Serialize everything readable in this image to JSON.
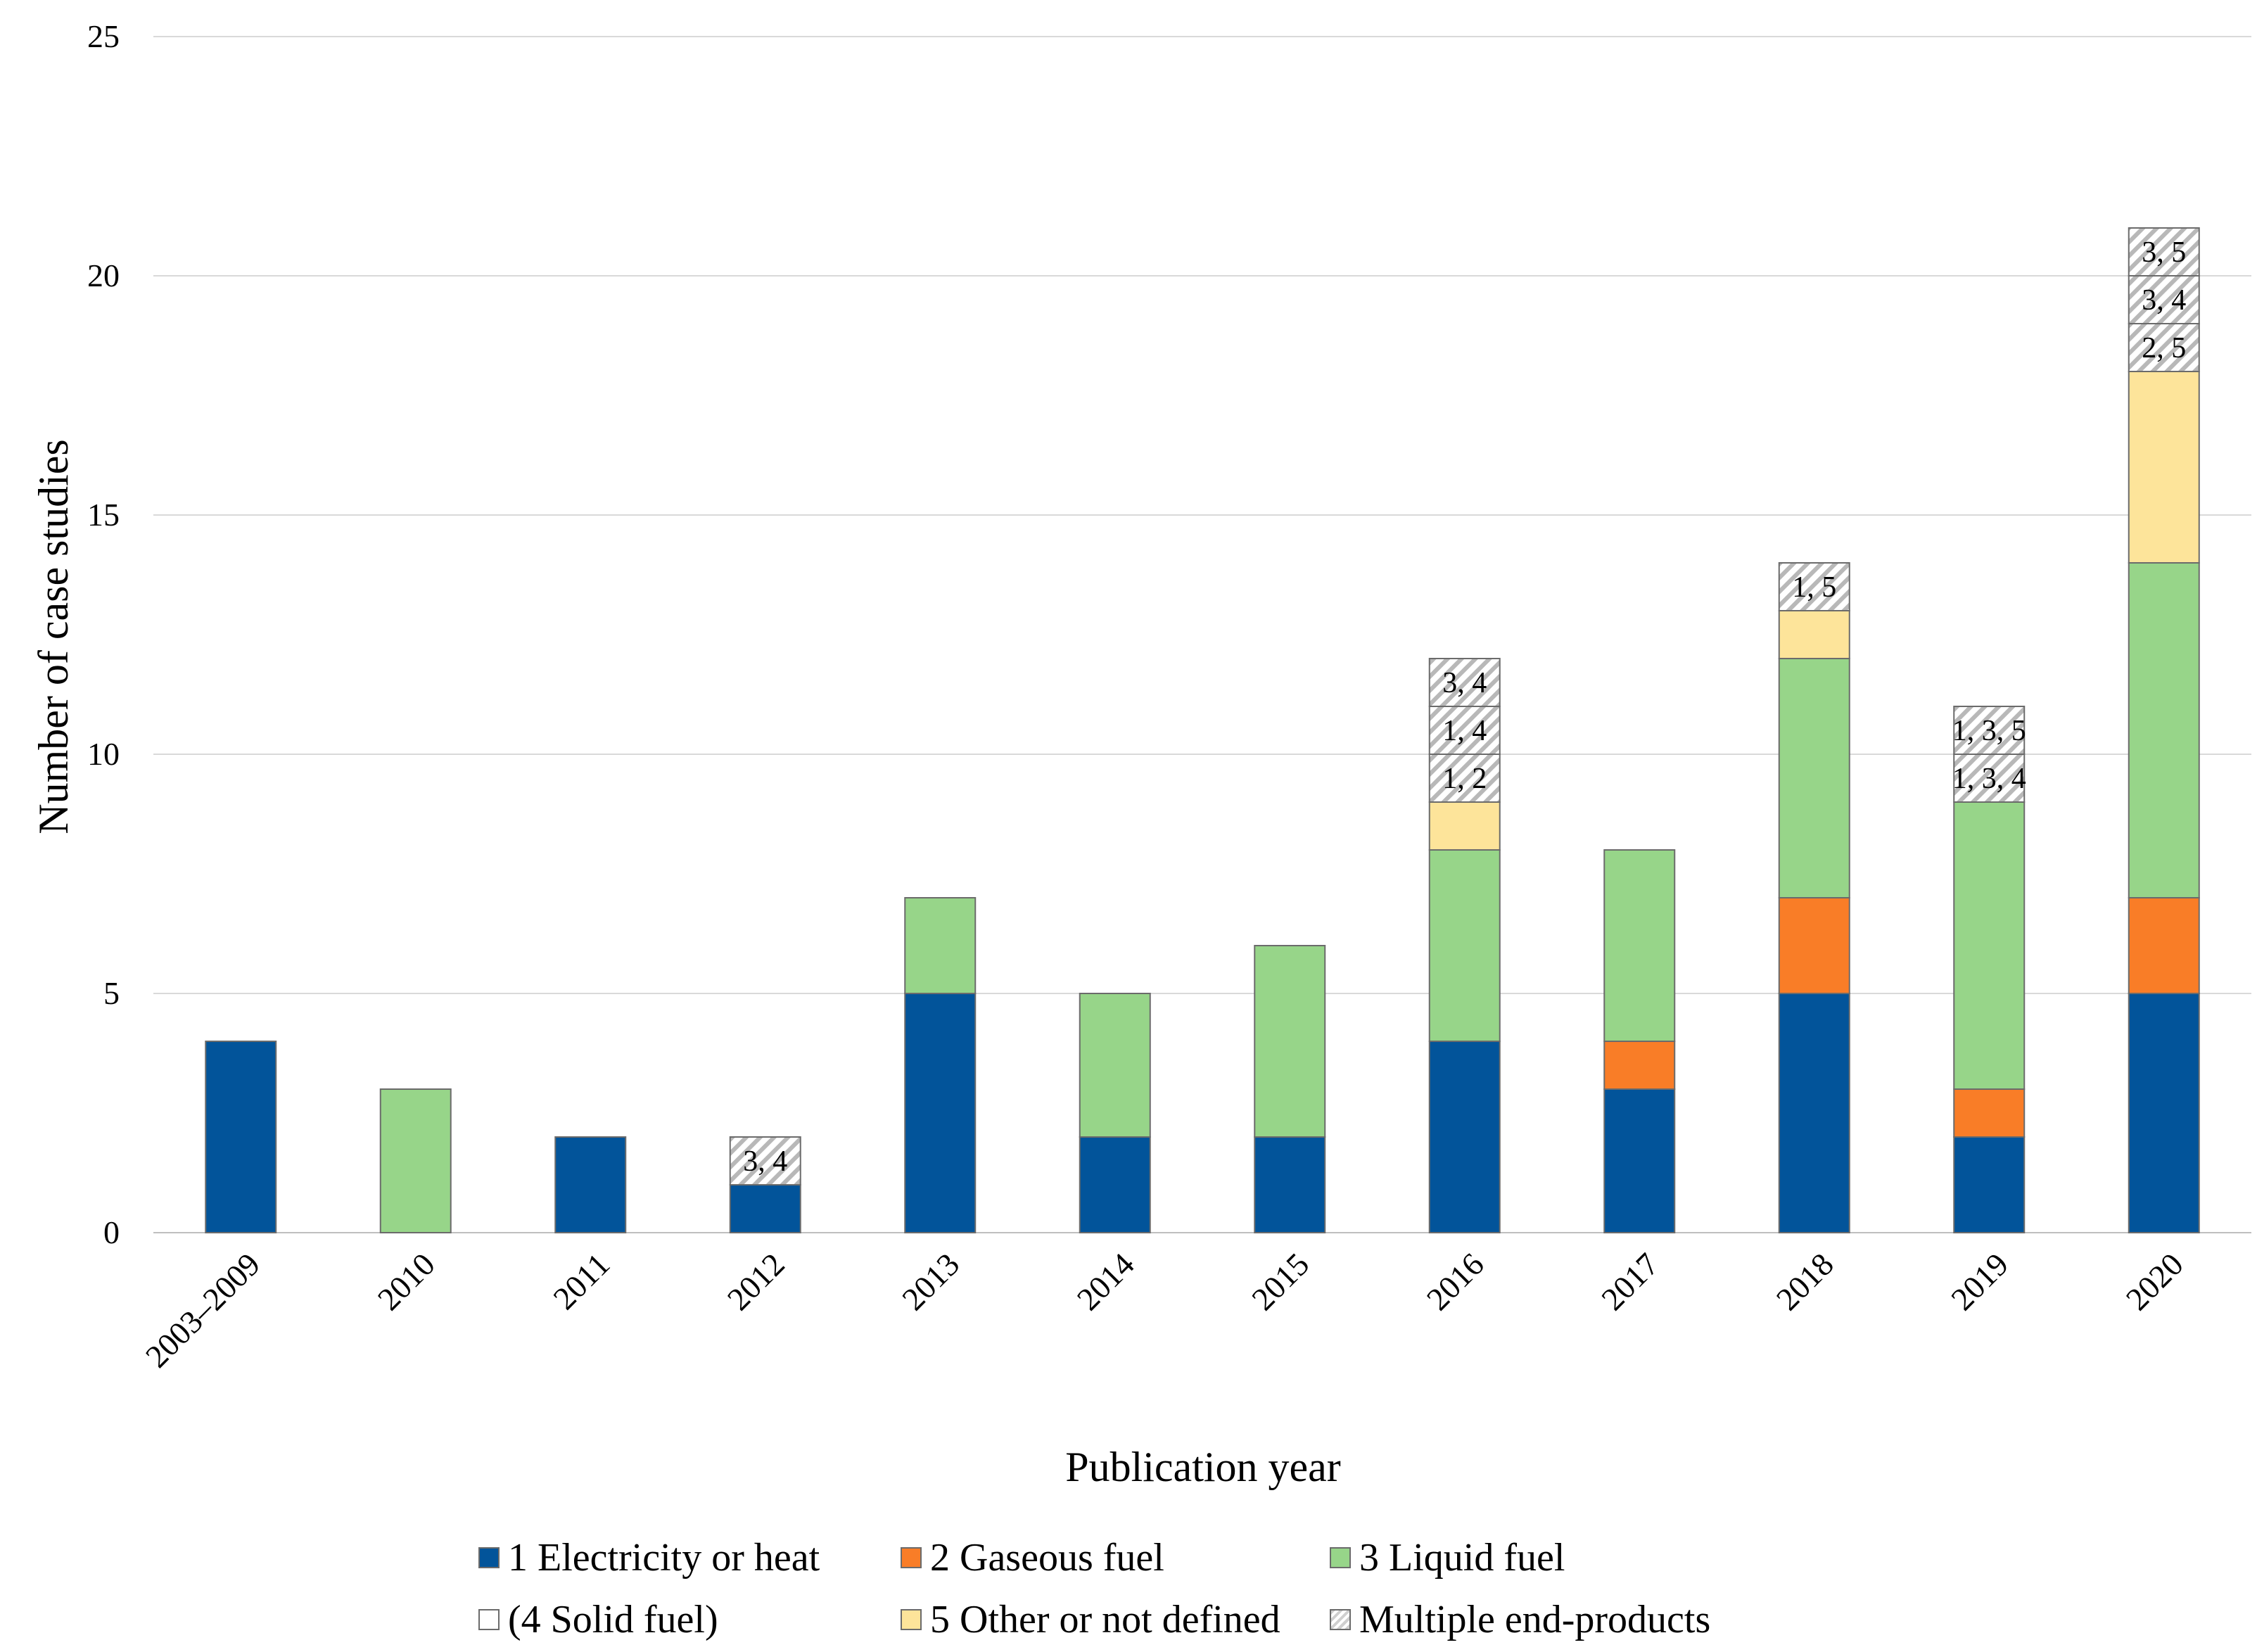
{
  "chart_data": {
    "type": "bar",
    "stacked": true,
    "title": "",
    "xlabel": "Publication year",
    "ylabel": "Number of case studies",
    "ylim": [
      0,
      25
    ],
    "yticks": [
      "0",
      "5",
      "10",
      "15",
      "20",
      "25"
    ],
    "grid": true,
    "legend_position": "bottom",
    "categories": [
      "2003–2009",
      "2010",
      "2011",
      "2012",
      "2013",
      "2014",
      "2015",
      "2016",
      "2017",
      "2018",
      "2019",
      "2020"
    ],
    "series": [
      {
        "name": "1 Electricity or heat",
        "color": "#02549a",
        "values": [
          4,
          0,
          2,
          1,
          5,
          2,
          2,
          4,
          3,
          5,
          2,
          5
        ]
      },
      {
        "name": "2 Gaseous fuel",
        "color": "#f97d27",
        "values": [
          0,
          0,
          0,
          0,
          0,
          0,
          0,
          0,
          1,
          2,
          1,
          2
        ]
      },
      {
        "name": "3 Liquid fuel",
        "color": "#97d589",
        "values": [
          0,
          3,
          0,
          0,
          2,
          3,
          4,
          4,
          4,
          5,
          6,
          7
        ]
      },
      {
        "name": "(4 Solid fuel)",
        "color": "#ffffff",
        "values": [
          0,
          0,
          0,
          0,
          0,
          0,
          0,
          0,
          0,
          0,
          0,
          0
        ]
      },
      {
        "name": "5 Other or not defined",
        "color": "#fde49a",
        "values": [
          0,
          0,
          0,
          0,
          0,
          0,
          0,
          1,
          0,
          1,
          0,
          4
        ]
      },
      {
        "name": "Multiple end-products",
        "color": "hatch",
        "values": [
          0,
          0,
          0,
          1,
          0,
          0,
          0,
          3,
          0,
          1,
          2,
          3
        ]
      }
    ],
    "multiple_labels": {
      "2012": [
        "3, 4"
      ],
      "2016": [
        "1, 2",
        "1, 4",
        "3, 4"
      ],
      "2018": [
        "1, 5"
      ],
      "2019": [
        "1, 3, 4",
        "1, 3, 5"
      ],
      "2020": [
        "2, 5",
        "3, 4",
        "3, 5"
      ]
    }
  }
}
